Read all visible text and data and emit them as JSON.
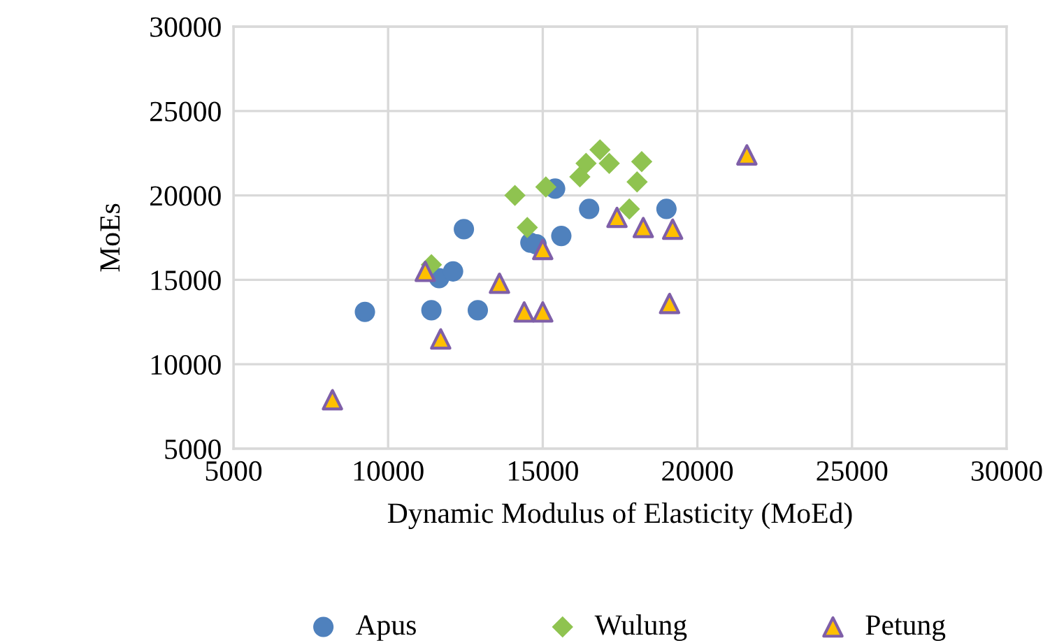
{
  "chart_data": {
    "type": "scatter",
    "xlabel": "Dynamic Modulus of Elasticity (MoEd)",
    "ylabel": "MoEs",
    "xlim": [
      5000,
      30000
    ],
    "ylim": [
      5000,
      30000
    ],
    "xticks": [
      5000,
      10000,
      15000,
      20000,
      25000,
      30000
    ],
    "yticks": [
      5000,
      10000,
      15000,
      20000,
      25000,
      30000
    ],
    "grid": true,
    "legend": "bottom",
    "series": [
      {
        "name": "Apus",
        "color": "#4f81bd",
        "marker": "circle",
        "x": [
          9250,
          11400,
          11650,
          12100,
          12450,
          12900,
          14600,
          14800,
          15400,
          15600,
          16500,
          19000
        ],
        "values": [
          13100,
          13200,
          15100,
          15500,
          18000,
          13200,
          17200,
          17100,
          20400,
          17600,
          19200,
          19200
        ]
      },
      {
        "name": "Wulung",
        "color": "#8fc350",
        "marker": "diamond",
        "x": [
          11400,
          14100,
          14500,
          15100,
          16200,
          16400,
          16850,
          17150,
          17800,
          18050,
          18200
        ],
        "values": [
          15900,
          20000,
          18100,
          20500,
          21100,
          21900,
          22700,
          21900,
          19200,
          20800,
          22000
        ]
      },
      {
        "name": "Petung",
        "color": "#ffc000",
        "marker": "triangle",
        "x": [
          8200,
          11200,
          11700,
          13600,
          14400,
          15000,
          15000,
          17400,
          18250,
          19200,
          19100,
          21600
        ],
        "values": [
          7900,
          15500,
          11500,
          14800,
          13100,
          13100,
          16800,
          18700,
          18100,
          18000,
          13600,
          22400
        ]
      }
    ]
  }
}
